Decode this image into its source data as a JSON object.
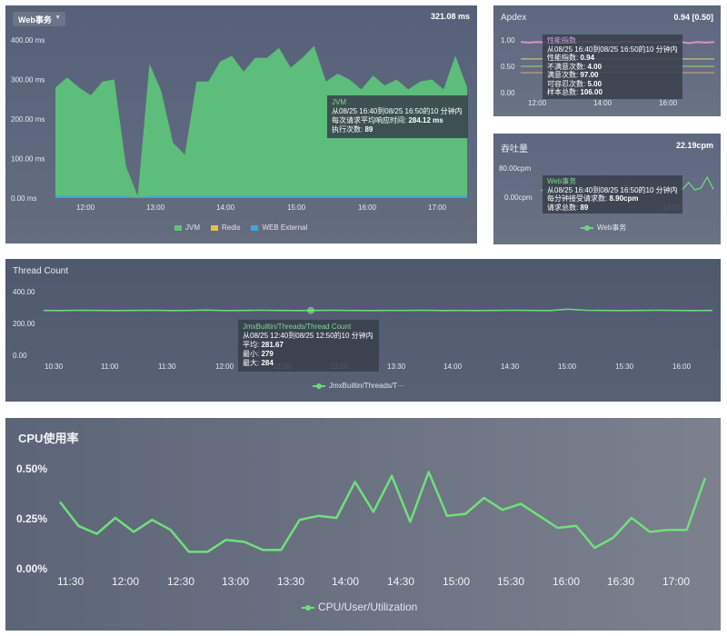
{
  "web": {
    "selector": "Web事务",
    "value": "321.08 ms",
    "tooltip": {
      "title": "JVM",
      "line1": "从08/25 16:40到08/25 16:50的10 分钟内",
      "label2": "每次请求平均响应时间:",
      "value2": "284.12 ms",
      "label3": "执行次数:",
      "value3": "89"
    }
  },
  "apdex": {
    "title": "Apdex",
    "value": "0.94 [0.50]",
    "tooltip": {
      "title": "性能指数",
      "line1": "从08/25 16:40到08/25 16:50的10 分钟内",
      "rows": [
        {
          "label": "性能指数:",
          "value": "0.94"
        },
        {
          "label": "不满意次数:",
          "value": "4.00"
        },
        {
          "label": "满意次数:",
          "value": "97.00"
        },
        {
          "label": "可容忍次数:",
          "value": "5.00"
        },
        {
          "label": "样本总数:",
          "value": "106.00"
        }
      ]
    }
  },
  "throughput": {
    "title": "吞吐量",
    "value": "22.19cpm",
    "tooltip": {
      "title": "Web事务",
      "line1": "从08/25 16:40到08/25 16:50的10 分钟内",
      "label2": "每分钟接受请求数:",
      "value2": "8.90cpm",
      "label3": "请求总数:",
      "value3": "89"
    }
  },
  "thread": {
    "title": "Thread Count",
    "tooltip": {
      "title": "JmxBuiltin/Threads/Thread Count",
      "line1": "从08/25 12:40到08/25 12:50的10 分钟内",
      "rows": [
        {
          "label": "平均:",
          "value": "281.67"
        },
        {
          "label": "最小:",
          "value": "279"
        },
        {
          "label": "最大:",
          "value": "284"
        }
      ]
    }
  },
  "cpu": {
    "title": "CPU使用率"
  },
  "chart_data": [
    {
      "type": "area",
      "title": "",
      "ylabel_ticks": [
        "400.00 ms",
        "300.00 ms",
        "200.00 ms",
        "100.00 ms",
        "0.00 ms"
      ],
      "ylim": [
        0,
        400
      ],
      "x_ticks": [
        "12:00",
        "13:00",
        "14:00",
        "15:00",
        "16:00",
        "17:00"
      ],
      "colors": {
        "JVM": "#5dc47a",
        "Redis": "#e6c14a",
        "WEB External": "#3aa8e0"
      },
      "series": [
        {
          "name": "JVM",
          "values": [
            280,
            305,
            280,
            260,
            295,
            300,
            80,
            5,
            340,
            270,
            140,
            110,
            295,
            295,
            345,
            360,
            320,
            355,
            355,
            380,
            330,
            355,
            385,
            295,
            315,
            300,
            275,
            310,
            285,
            300,
            275,
            295,
            300,
            275,
            360,
            280
          ]
        },
        {
          "name": "Redis",
          "values": [
            0,
            0,
            0,
            0,
            0,
            0,
            0,
            0,
            0,
            0,
            0,
            0,
            0,
            0,
            0,
            0,
            0,
            0,
            0,
            0,
            0,
            0,
            0,
            0,
            0,
            0,
            0,
            0,
            0,
            0,
            0,
            0,
            0,
            0,
            0,
            0
          ]
        },
        {
          "name": "WEB External",
          "values": [
            5,
            5,
            5,
            5,
            5,
            5,
            5,
            2,
            5,
            5,
            5,
            5,
            5,
            5,
            5,
            5,
            5,
            5,
            5,
            5,
            5,
            5,
            5,
            5,
            5,
            5,
            5,
            5,
            5,
            5,
            5,
            5,
            5,
            5,
            5,
            6
          ]
        }
      ],
      "legend": [
        "JVM",
        "Redis",
        "WEB External"
      ]
    },
    {
      "type": "line",
      "title": "Apdex",
      "y_ticks": [
        "1.00",
        "0.50",
        "0.00"
      ],
      "ylim": [
        0,
        1.0
      ],
      "x_ticks": [
        "12:00",
        "14:00",
        "16:00"
      ],
      "series": [
        {
          "name": "性能指数",
          "color": "#d98fd6",
          "values": [
            0.96,
            0.95,
            0.96,
            0.95,
            0.97,
            0.96,
            0.95,
            0.96,
            0.97,
            0.95,
            0.96,
            0.95,
            0.96,
            0.97,
            0.95,
            0.96,
            0.95,
            0.96,
            0.95,
            0.96,
            0.94,
            0.96,
            0.95,
            0.96
          ]
        },
        {
          "name": "",
          "color": "#e6d27a",
          "values": [
            0.64,
            0.64,
            0.64,
            0.64,
            0.64,
            0.64,
            0.64,
            0.64,
            0.64,
            0.64,
            0.64,
            0.64,
            0.64,
            0.64,
            0.64,
            0.64,
            0.64,
            0.64,
            0.64,
            0.64,
            0.64,
            0.64,
            0.64,
            0.64
          ]
        },
        {
          "name": "",
          "color": "#a6d66e",
          "values": [
            0.5,
            0.5,
            0.5,
            0.5,
            0.5,
            0.5,
            0.5,
            0.5,
            0.5,
            0.5,
            0.5,
            0.5,
            0.5,
            0.5,
            0.5,
            0.5,
            0.5,
            0.5,
            0.5,
            0.5,
            0.5,
            0.5,
            0.5,
            0.5
          ]
        },
        {
          "name": "",
          "color": "#d9a58a",
          "values": [
            0.38,
            0.38,
            0.38,
            0.38,
            0.38,
            0.38,
            0.38,
            0.38,
            0.38,
            0.38,
            0.38,
            0.38,
            0.38,
            0.38,
            0.38,
            0.38,
            0.38,
            0.38,
            0.38,
            0.38,
            0.38,
            0.38,
            0.38,
            0.38
          ]
        }
      ]
    },
    {
      "type": "line",
      "title": "吞吐量",
      "y_ticks": [
        "80.00cpm",
        "0.00cpm"
      ],
      "ylim": [
        0,
        80
      ],
      "x_ticks": [
        "16:00"
      ],
      "series": [
        {
          "name": "Web事务",
          "color": "#6fd47f",
          "values": [
            18,
            22,
            12,
            20,
            15,
            24,
            10,
            18,
            26,
            12,
            30,
            15,
            22,
            18,
            35,
            12,
            20,
            28,
            16,
            24,
            14,
            30,
            18,
            22,
            40,
            20,
            25,
            55,
            22
          ]
        }
      ],
      "legend": [
        "Web事务"
      ]
    },
    {
      "type": "line",
      "title": "Thread Count",
      "y_ticks": [
        "400.00",
        "200.00",
        "0.00"
      ],
      "ylim": [
        0,
        400
      ],
      "x_ticks": [
        "10:30",
        "11:00",
        "11:30",
        "12:00",
        "12:30",
        "13:00",
        "13:30",
        "14:00",
        "14:30",
        "15:00",
        "15:30",
        "16:00"
      ],
      "series": [
        {
          "name": "JmxBuiltin/Threads/T···",
          "color": "#6fd47f",
          "values": [
            282,
            281,
            283,
            282,
            281,
            282,
            283,
            281,
            282,
            284,
            281,
            282,
            283,
            282,
            281,
            282,
            283,
            282,
            281,
            282,
            282,
            283,
            281,
            282,
            281,
            282,
            283,
            282,
            281,
            290,
            283,
            282,
            281,
            282,
            283,
            282,
            281,
            282
          ]
        }
      ],
      "legend": [
        "JmxBuiltin/Threads/T···"
      ]
    },
    {
      "type": "line",
      "title": "CPU使用率",
      "y_ticks": [
        "0.50%",
        "0.25%",
        "0.00%"
      ],
      "ylim": [
        0,
        0.5
      ],
      "x_ticks": [
        "11:30",
        "12:00",
        "12:30",
        "13:00",
        "13:30",
        "14:00",
        "14:30",
        "15:00",
        "15:30",
        "16:00",
        "16:30",
        "17:00"
      ],
      "series": [
        {
          "name": "CPU/User/Utilization",
          "color": "#6fe07d",
          "values": [
            0.33,
            0.21,
            0.17,
            0.25,
            0.18,
            0.24,
            0.19,
            0.08,
            0.08,
            0.14,
            0.13,
            0.09,
            0.09,
            0.24,
            0.26,
            0.25,
            0.43,
            0.28,
            0.46,
            0.23,
            0.48,
            0.26,
            0.27,
            0.35,
            0.29,
            0.32,
            0.26,
            0.2,
            0.21,
            0.1,
            0.15,
            0.25,
            0.18,
            0.19,
            0.19,
            0.45
          ]
        }
      ],
      "legend": [
        "CPU/User/Utilization"
      ]
    }
  ]
}
